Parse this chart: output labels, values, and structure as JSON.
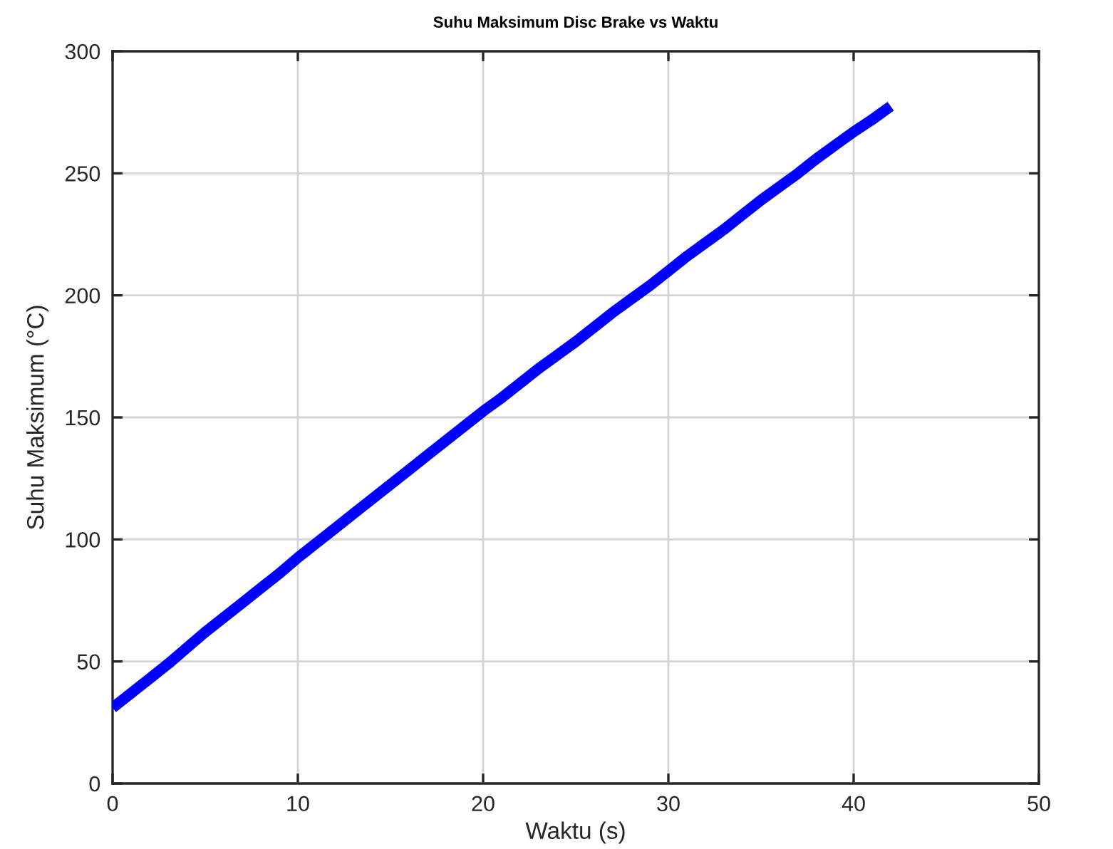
{
  "chart_data": {
    "type": "line",
    "title": "Suhu Maksimum Disc Brake vs Waktu",
    "xlabel": "Waktu (s)",
    "ylabel": "Suhu Maksimum (°C)",
    "x": [
      0,
      1,
      2,
      3,
      4,
      5,
      6,
      7,
      8,
      9,
      10,
      11,
      12,
      13,
      14,
      15,
      16,
      17,
      18,
      19,
      20,
      21,
      22,
      23,
      24,
      25,
      26,
      27,
      28,
      29,
      30,
      31,
      32,
      33,
      34,
      35,
      36,
      37,
      38,
      39,
      40,
      41,
      42
    ],
    "series": [
      {
        "color": "#0000ff",
        "values": [
          31,
          37,
          43,
          49,
          55.5,
          62,
          68,
          74,
          80,
          86,
          92.5,
          98.5,
          104.5,
          110.5,
          116.5,
          122.5,
          128.5,
          134.5,
          140.5,
          146.5,
          152.5,
          158,
          164,
          170,
          175.5,
          181,
          187,
          193,
          198.5,
          204,
          210,
          216,
          221.5,
          227,
          233,
          239,
          244.5,
          250,
          256,
          261.5,
          267,
          272,
          277.5
        ]
      }
    ],
    "xlim": [
      0,
      50
    ],
    "xticks": [
      0,
      10,
      20,
      30,
      40,
      50
    ],
    "ylim": [
      0,
      300
    ],
    "yticks": [
      0,
      50,
      100,
      150,
      200,
      250,
      300
    ],
    "grid": true,
    "marker": "none",
    "line_style": "solid"
  }
}
